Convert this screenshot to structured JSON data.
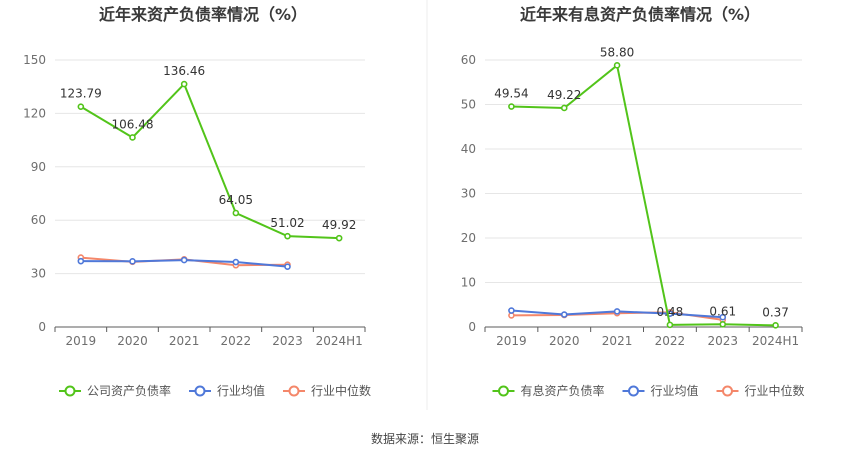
{
  "source": "数据来源：恒生聚源",
  "colors": {
    "main": "#52c41a",
    "avg": "#4f78d9",
    "median": "#f4876a",
    "grid": "#e6e6e6",
    "axis": "#5b5b5b"
  },
  "chart_data": [
    {
      "type": "line",
      "title": "近年来资产负债率情况（%）",
      "categories": [
        "2019",
        "2020",
        "2021",
        "2022",
        "2023",
        "2024H1"
      ],
      "ylim": [
        0,
        150
      ],
      "yticks": [
        0,
        30,
        60,
        90,
        120,
        150
      ],
      "grid": true,
      "legend_position": "bottom",
      "series": [
        {
          "name": "公司资产负债率",
          "color_key": "main",
          "labels": true,
          "values": [
            123.79,
            106.48,
            136.46,
            64.05,
            51.02,
            49.92
          ]
        },
        {
          "name": "行业均值",
          "color_key": "avg",
          "labels": false,
          "values": [
            37.0,
            36.9,
            37.6,
            36.5,
            33.9,
            null
          ]
        },
        {
          "name": "行业中位数",
          "color_key": "median",
          "labels": false,
          "values": [
            39.0,
            36.6,
            38.0,
            34.7,
            35.0,
            null
          ]
        }
      ]
    },
    {
      "type": "line",
      "title": "近年来有息资产负债率情况（%）",
      "categories": [
        "2019",
        "2020",
        "2021",
        "2022",
        "2023",
        "2024H1"
      ],
      "ylim": [
        0,
        60
      ],
      "yticks": [
        0,
        10,
        20,
        30,
        40,
        50,
        60
      ],
      "grid": true,
      "legend_position": "bottom",
      "series": [
        {
          "name": "有息资产负债率",
          "color_key": "main",
          "labels": true,
          "values": [
            49.54,
            49.22,
            58.8,
            0.48,
            0.61,
            0.37
          ]
        },
        {
          "name": "行业均值",
          "color_key": "avg",
          "labels": false,
          "values": [
            3.7,
            2.8,
            3.5,
            3.0,
            2.2,
            null
          ]
        },
        {
          "name": "行业中位数",
          "color_key": "median",
          "labels": false,
          "values": [
            2.6,
            2.7,
            3.1,
            3.3,
            1.6,
            null
          ]
        }
      ]
    }
  ]
}
